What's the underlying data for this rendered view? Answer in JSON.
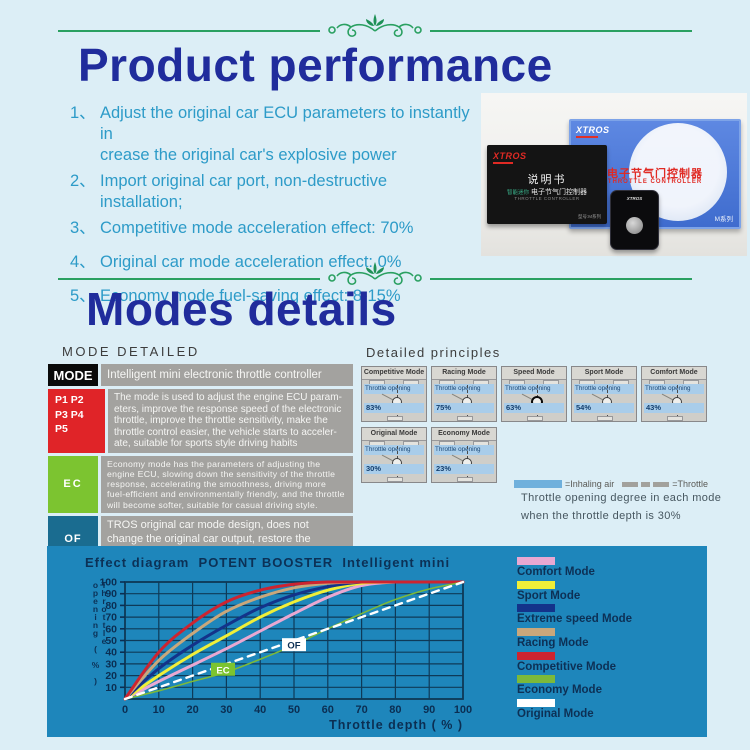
{
  "section1": {
    "title": "Product performance",
    "features": [
      {
        "num": "1、",
        "text": "Adjust the original car ECU parameters to instantly in\ncrease the original car's explosive power",
        "gap": false
      },
      {
        "num": "2、",
        "text": "Import original car port, non-destructive installation;",
        "gap": false
      },
      {
        "num": "3、",
        "text": "Competitive mode acceleration effect: 70%",
        "gap": false
      },
      {
        "num": "4、",
        "text": "Original car mode acceleration effect: 0%",
        "gap": true
      },
      {
        "num": "5、",
        "text": "Economy mode fuel-saving effect: 8-15%",
        "gap": true
      }
    ]
  },
  "product_photo": {
    "box": {
      "logo": "XTROS",
      "title_cn": "电子节气门控制器",
      "title_en": "THROTTLE CONTROLLER",
      "series": "M系列"
    },
    "manual": {
      "logo": "XTROS",
      "title_cn": "说明书",
      "badge_cn": "智能迷你",
      "line_cn": "电子节气门控制器",
      "line_en": "THROTTLE CONTROLLER",
      "model": "型号:M系列"
    },
    "device": {
      "logo": "XTROS"
    }
  },
  "section2": {
    "title": "Modes details",
    "mode_detailed_label": "MODE DETAILED",
    "principles_label": "Detailed principles",
    "table": [
      {
        "key": "MODE",
        "key_bg": "#0a0a0a",
        "cls": "r1",
        "text": "Intelligent mini electronic throttle controller"
      },
      {
        "key": "P1  P2\nP3  P4\nP5",
        "key_bg": "#e02428",
        "cls": "r2",
        "text": "The mode is used to adjust the engine ECU param-eters, improve the response speed of the electronic throttle, improve the throttle sensitivity, make the throttle control easier, the vehicle starts to acceler-ate, suitable for sports style driving habits"
      },
      {
        "key": "EC",
        "key_bg": "#7cc430",
        "cls": "r3",
        "text": "Economy mode has the parameters of adjusting the engine ECU, slowing down the sensitivity of the throttle response, accelerating the smoothness, driving more fuel-efficient and environmentally friendly, and the throttle will become softer, suitable for casual driving style."
      },
      {
        "key": "OF",
        "key_bg": "#1a6c90",
        "cls": "r4",
        "text": "TROS  original car mode design, does not change the original car output, restore the original car control"
      }
    ],
    "card_band_label": "Throttle opening",
    "cards": [
      {
        "name": "Competitive Mode",
        "opening": "83%",
        "emphasis": false
      },
      {
        "name": "Racing Mode",
        "opening": "75%",
        "emphasis": false
      },
      {
        "name": "Speed Mode",
        "opening": "63%",
        "emphasis": true
      },
      {
        "name": "Sport Mode",
        "opening": "54%",
        "emphasis": false
      },
      {
        "name": "Comfort Mode",
        "opening": "43%",
        "emphasis": false
      },
      {
        "name": "Original Mode",
        "opening": "30%",
        "emphasis": false
      },
      {
        "name": "Economy Mode",
        "opening": "23%",
        "emphasis": false
      }
    ],
    "principles_legend": {
      "inhaling": "=Inhaling air",
      "throttle": "=Throttle"
    },
    "principles_note_line1": "Throttle opening degree in each mode",
    "principles_note_line2": "when the throttle depth is 30%"
  },
  "chart_data": {
    "type": "line",
    "title": "Effect diagram  POTENT BOOSTER  Intelligent mini",
    "xlabel": "Throttle depth ( % )",
    "ylabel": "Throttle opening ( % )",
    "xlim": [
      0,
      100
    ],
    "ylim": [
      0,
      100
    ],
    "x_ticks": [
      0,
      10,
      20,
      30,
      40,
      50,
      60,
      70,
      80,
      90,
      100
    ],
    "y_ticks": [
      10,
      20,
      30,
      40,
      50,
      60,
      70,
      80,
      90,
      100
    ],
    "grid": true,
    "background": "#1e86bb",
    "legend_position": "right",
    "x": [
      0,
      10,
      20,
      30,
      40,
      50,
      60,
      70,
      80,
      90,
      100
    ],
    "series": [
      {
        "name": "Comfort Mode",
        "color": "#e9a8d2",
        "values": [
          0,
          15,
          29,
          43,
          58,
          73,
          87,
          97,
          100,
          100,
          100
        ]
      },
      {
        "name": "Sport Mode",
        "color": "#f0ef38",
        "values": [
          0,
          20,
          38,
          54,
          70,
          83,
          93,
          99,
          100,
          100,
          100
        ]
      },
      {
        "name": "Extreme speed Mode",
        "color": "#13338a",
        "values": [
          0,
          26,
          46,
          63,
          78,
          89,
          96,
          100,
          100,
          100,
          100
        ]
      },
      {
        "name": "Racing Mode",
        "color": "#c9a77b",
        "values": [
          0,
          33,
          56,
          75,
          87,
          95,
          99,
          100,
          100,
          100,
          100
        ]
      },
      {
        "name": "Competitive Mode",
        "color": "#cd2430",
        "values": [
          0,
          40,
          65,
          83,
          93,
          98,
          100,
          100,
          100,
          100,
          100
        ]
      },
      {
        "name": "Economy Mode",
        "color": "#7cb93a",
        "values": [
          0,
          7,
          15,
          23,
          34,
          46,
          60,
          73,
          85,
          94,
          100
        ],
        "thin": true
      },
      {
        "name": "Original Mode",
        "color": "#ffffff",
        "values": [
          0,
          10,
          20,
          30,
          40,
          50,
          60,
          70,
          80,
          90,
          100
        ],
        "dashed": true
      }
    ],
    "annotations": [
      {
        "text": "OF",
        "x": 50,
        "y": 46,
        "bg": "#ffffff",
        "fg": "#0d3055"
      },
      {
        "text": "EC",
        "x": 29,
        "y": 25,
        "bg": "#7cc430",
        "fg": "#ffffff"
      }
    ]
  }
}
